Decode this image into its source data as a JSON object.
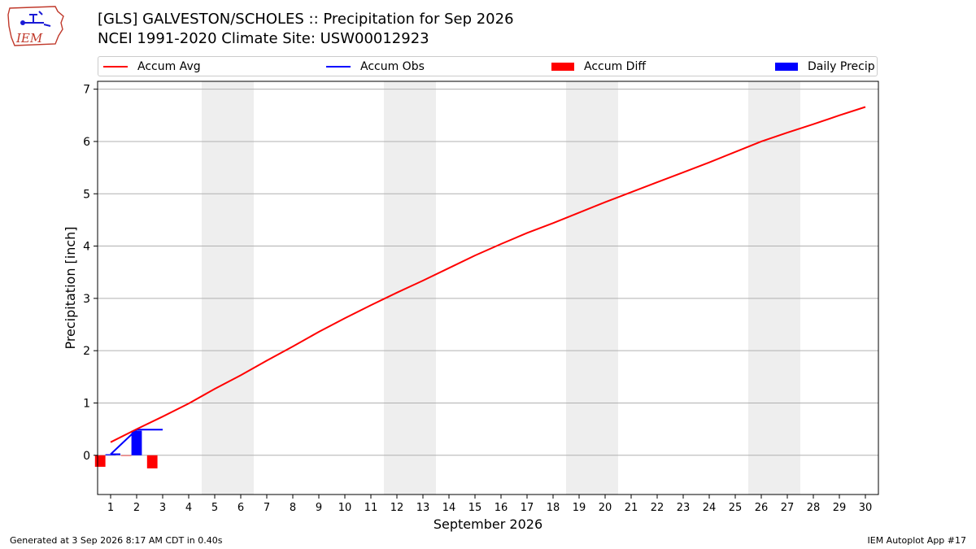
{
  "header": {
    "title_line1": "[GLS] GALVESTON/SCHOLES :: Precipitation for Sep 2026",
    "title_line2": "NCEI 1991-2020 Climate Site: USW00012923",
    "logo_text": "IEM"
  },
  "legend": [
    {
      "label": "Accum Avg",
      "kind": "line",
      "color": "#ff0000"
    },
    {
      "label": "Accum Obs",
      "kind": "line",
      "color": "#0000ff"
    },
    {
      "label": "Accum Diff",
      "kind": "patch",
      "color": "#ff0000"
    },
    {
      "label": "Daily Precip",
      "kind": "patch",
      "color": "#0000ff"
    }
  ],
  "footer": {
    "left": "Generated at 3 Sep 2026 8:17 AM CDT in 0.40s",
    "right": "IEM Autoplot App #17"
  },
  "chart_data": {
    "type": "line",
    "xlabel": "September 2026",
    "ylabel": "Precipitation [inch]",
    "xlim": [
      0.5,
      30.5
    ],
    "ylim": [
      -0.75,
      7.15
    ],
    "x_ticks": [
      1,
      2,
      3,
      4,
      5,
      6,
      7,
      8,
      9,
      10,
      11,
      12,
      13,
      14,
      15,
      16,
      17,
      18,
      19,
      20,
      21,
      22,
      23,
      24,
      25,
      26,
      27,
      28,
      29,
      30
    ],
    "y_ticks": [
      0,
      1,
      2,
      3,
      4,
      5,
      6,
      7
    ],
    "grid": "horizontal",
    "weekend_shading": [
      [
        4.5,
        6.5
      ],
      [
        11.5,
        13.5
      ],
      [
        18.5,
        20.5
      ],
      [
        25.5,
        27.5
      ]
    ],
    "accum_avg": {
      "name": "Accum Avg",
      "color": "#ff0000",
      "x": [
        1,
        2,
        3,
        4,
        5,
        6,
        7,
        8,
        9,
        10,
        11,
        12,
        13,
        14,
        15,
        16,
        17,
        18,
        19,
        20,
        21,
        22,
        23,
        24,
        25,
        26,
        27,
        28,
        29,
        30
      ],
      "values": [
        0.25,
        0.5,
        0.74,
        0.99,
        1.27,
        1.53,
        1.81,
        2.08,
        2.36,
        2.62,
        2.87,
        3.11,
        3.34,
        3.58,
        3.82,
        4.04,
        4.25,
        4.44,
        4.64,
        4.84,
        5.03,
        5.22,
        5.41,
        5.6,
        5.8,
        6.0,
        6.17,
        6.33,
        6.5,
        6.66
      ]
    },
    "accum_obs": {
      "name": "Accum Obs",
      "color": "#0000ff",
      "x": [
        1,
        2,
        3
      ],
      "values": [
        0.02,
        0.49,
        0.49
      ]
    },
    "daily_precip": {
      "name": "Daily Precip",
      "color": "#0000ff",
      "x": [
        1,
        2,
        3
      ],
      "values": [
        0.02,
        0.47,
        0.0
      ]
    },
    "accum_diff": {
      "name": "Accum Diff",
      "color": "#ff0000",
      "x": [
        1,
        2,
        3
      ],
      "values": [
        -0.22,
        -0.01,
        -0.25
      ]
    }
  }
}
